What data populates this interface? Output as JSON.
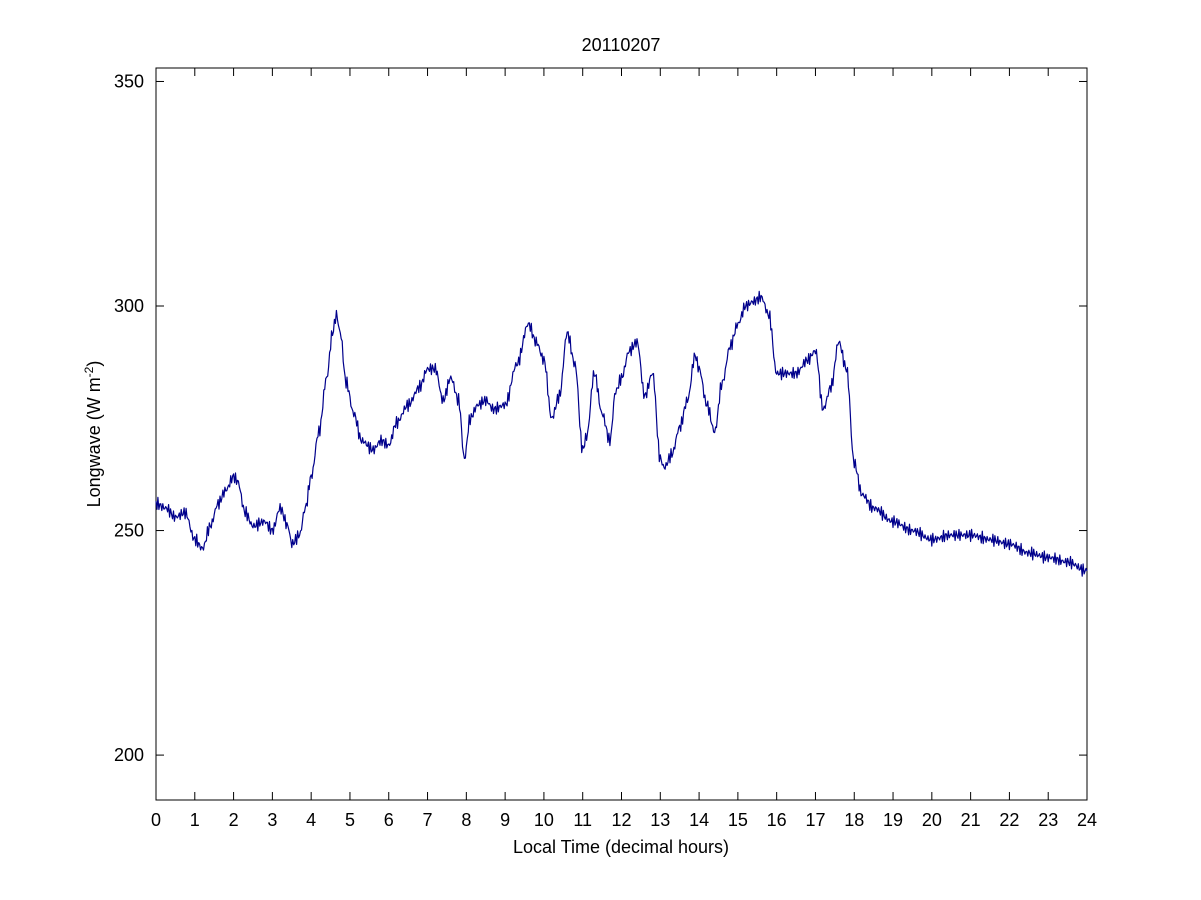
{
  "chart_data": {
    "type": "line",
    "title": "20110207",
    "xlabel": "Local Time (decimal hours)",
    "ylabel": {
      "prefix": "Longwave (W m",
      "superscript": "-2",
      "suffix": ")"
    },
    "xlim": [
      0,
      24
    ],
    "ylim": [
      190,
      353
    ],
    "x_ticks": [
      0,
      1,
      2,
      3,
      4,
      5,
      6,
      7,
      8,
      9,
      10,
      11,
      12,
      13,
      14,
      15,
      16,
      17,
      18,
      19,
      20,
      21,
      22,
      23,
      24
    ],
    "y_ticks": [
      200,
      250,
      300,
      350
    ],
    "grid": false,
    "legend": "none",
    "line_color": "#00008b",
    "series": [
      {
        "x": [
          0,
          0.25,
          0.5,
          0.75,
          1,
          1.2,
          1.4,
          1.6,
          1.8,
          2,
          2.1,
          2.3,
          2.5,
          2.8,
          3,
          3.2,
          3.4,
          3.5,
          3.7,
          3.85,
          4,
          4.2,
          4.4,
          4.55,
          4.65,
          4.75,
          4.9,
          5.1,
          5.3,
          5.6,
          5.8,
          6,
          6.2,
          6.5,
          6.8,
          7,
          7.2,
          7.4,
          7.6,
          7.8,
          7.95,
          8.1,
          8.3,
          8.5,
          8.7,
          9,
          9.3,
          9.6,
          9.8,
          10,
          10.2,
          10.4,
          10.6,
          10.8,
          11,
          11.1,
          11.3,
          11.5,
          11.7,
          11.85,
          12,
          12.2,
          12.4,
          12.6,
          12.8,
          13,
          13.1,
          13.3,
          13.5,
          13.7,
          13.9,
          14,
          14.2,
          14.4,
          14.6,
          14.8,
          15,
          15.2,
          15.4,
          15.6,
          15.8,
          16,
          16.2,
          16.5,
          16.8,
          17,
          17.2,
          17.4,
          17.6,
          17.8,
          18,
          18.2,
          18.5,
          19,
          19.5,
          20,
          20.5,
          21,
          21.5,
          22,
          22.5,
          23,
          23.5,
          24
        ],
        "y": [
          256,
          255,
          253,
          254,
          248,
          246,
          251,
          256,
          259,
          262,
          261,
          254,
          251,
          252,
          250,
          255,
          251,
          247,
          249,
          255,
          262,
          272,
          284,
          294,
          298,
          294,
          283,
          276,
          270,
          268,
          270,
          269,
          274,
          278,
          282,
          286,
          286,
          279,
          284,
          279,
          266,
          275,
          278,
          279,
          277,
          278,
          287,
          296,
          292,
          288,
          275,
          280,
          294,
          287,
          268,
          271,
          285,
          276,
          270,
          281,
          284,
          290,
          292,
          280,
          285,
          266,
          264,
          267,
          273,
          279,
          289,
          286,
          278,
          272,
          283,
          291,
          296,
          300,
          301,
          302,
          298,
          285,
          285,
          285,
          288,
          290,
          277,
          282,
          292,
          286,
          265,
          258,
          255,
          252,
          250,
          248,
          249,
          249,
          248,
          247,
          245,
          244,
          243,
          241
        ]
      }
    ]
  }
}
